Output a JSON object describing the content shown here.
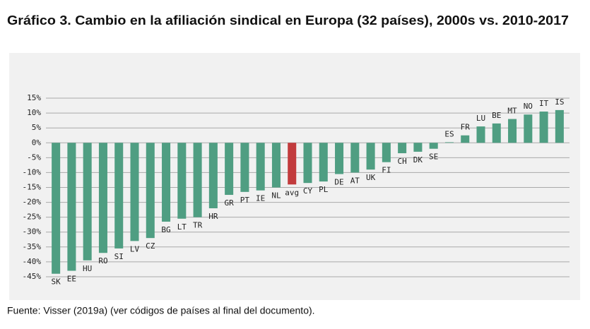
{
  "chart_data": {
    "type": "bar",
    "title": "Gráfico 3. Cambio en la afiliación sindical en Europa (32 países), 2000s vs. 2010-2017",
    "note": "Fuente: Visser (2019a) (ver códigos de países al final del documento).",
    "categories": [
      "SK",
      "EE",
      "HU",
      "RO",
      "SI",
      "LV",
      "CZ",
      "BG",
      "LT",
      "TR",
      "HR",
      "GR",
      "PT",
      "IE",
      "NL",
      "avg",
      "CY",
      "PL",
      "DE",
      "AT",
      "UK",
      "FI",
      "CH",
      "DK",
      "SE",
      "ES",
      "FR",
      "LU",
      "BE",
      "MT",
      "NO",
      "IT",
      "IS"
    ],
    "values": [
      -44,
      -43,
      -39.5,
      -37,
      -35.5,
      -33,
      -32,
      -26.5,
      -25.5,
      -25,
      -22,
      -17.5,
      -16.5,
      -16,
      -15,
      -14,
      -13.5,
      -13,
      -10.5,
      -10,
      -9,
      -6.5,
      -3.5,
      -3,
      -2,
      0.2,
      2.5,
      5.5,
      6.5,
      8,
      9.5,
      10.5,
      11
    ],
    "colors": [
      "#4f9e82",
      "#4f9e82",
      "#4f9e82",
      "#4f9e82",
      "#4f9e82",
      "#4f9e82",
      "#4f9e82",
      "#4f9e82",
      "#4f9e82",
      "#4f9e82",
      "#4f9e82",
      "#4f9e82",
      "#4f9e82",
      "#4f9e82",
      "#4f9e82",
      "#c23b3d",
      "#4f9e82",
      "#4f9e82",
      "#4f9e82",
      "#4f9e82",
      "#4f9e82",
      "#4f9e82",
      "#4f9e82",
      "#4f9e82",
      "#4f9e82",
      "#4f9e82",
      "#4f9e82",
      "#4f9e82",
      "#4f9e82",
      "#4f9e82",
      "#4f9e82",
      "#4f9e82",
      "#4f9e82"
    ],
    "ylim": [
      -48,
      18
    ],
    "yticks": [
      {
        "value": 15,
        "label": "15%"
      },
      {
        "value": 10,
        "label": "10%"
      },
      {
        "value": 5,
        "label": "5%"
      },
      {
        "value": 0,
        "label": "0%"
      },
      {
        "value": -5,
        "label": "-5%"
      },
      {
        "value": -10,
        "label": "-10%"
      },
      {
        "value": -15,
        "label": "-15%"
      },
      {
        "value": -20,
        "label": "-20%"
      },
      {
        "value": -25,
        "label": "-25%"
      },
      {
        "value": -30,
        "label": "-30%"
      },
      {
        "value": -35,
        "label": "-35%"
      },
      {
        "value": -40,
        "label": "-40%"
      },
      {
        "value": -45,
        "label": "-45%"
      }
    ],
    "grid": true
  }
}
